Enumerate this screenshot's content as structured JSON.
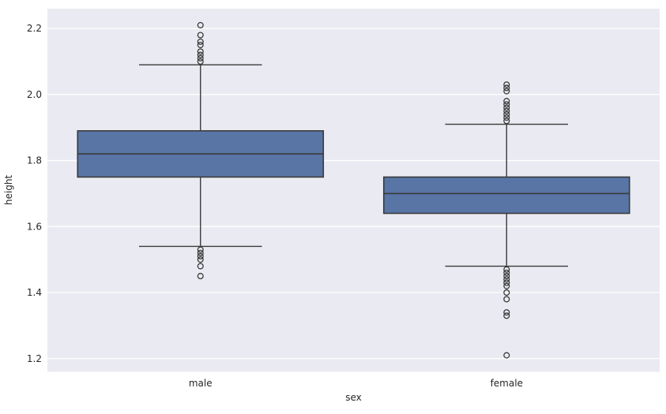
{
  "figure": {
    "background": "#ffffff",
    "axes_background": "#eaeaf2",
    "grid_color": "#ffffff",
    "text_color": "#262626"
  },
  "chart_data": {
    "type": "box",
    "title": "",
    "xlabel": "sex",
    "ylabel": "height",
    "categories": [
      "male",
      "female"
    ],
    "ylim": [
      1.16,
      2.26
    ],
    "yticks": [
      1.2,
      1.4,
      1.6,
      1.8,
      2.0,
      2.2
    ],
    "grid": true,
    "legend": "none",
    "box_fill": "#5875a6",
    "line_color": "#3a3a3a",
    "series": [
      {
        "name": "male",
        "whisker_low": 1.54,
        "q1": 1.75,
        "median": 1.82,
        "q3": 1.89,
        "whisker_high": 2.09,
        "outliers": [
          2.21,
          2.18,
          2.16,
          2.15,
          2.13,
          2.12,
          2.11,
          2.1,
          1.53,
          1.52,
          1.51,
          1.5,
          1.48,
          1.45
        ]
      },
      {
        "name": "female",
        "whisker_low": 1.48,
        "q1": 1.64,
        "median": 1.7,
        "q3": 1.75,
        "whisker_high": 1.91,
        "outliers": [
          2.03,
          2.02,
          2.01,
          1.98,
          1.97,
          1.96,
          1.95,
          1.94,
          1.93,
          1.92,
          1.47,
          1.46,
          1.45,
          1.44,
          1.43,
          1.42,
          1.4,
          1.38,
          1.34,
          1.33,
          1.21
        ]
      }
    ]
  }
}
